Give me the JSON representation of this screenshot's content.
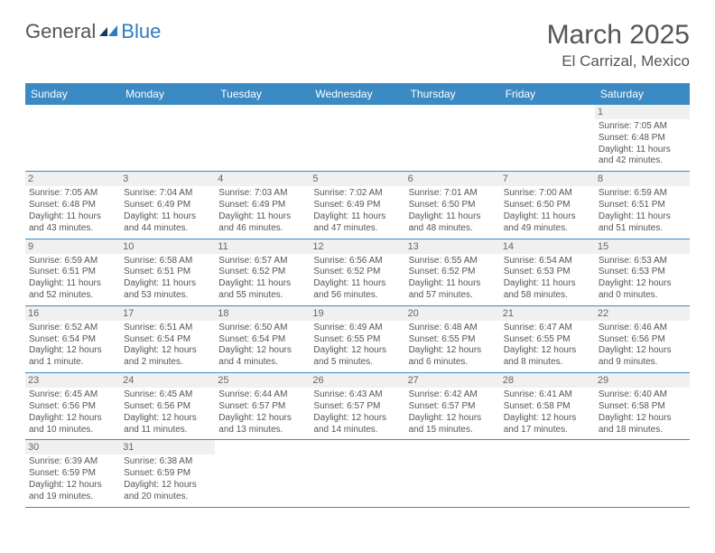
{
  "logo": {
    "text1": "General",
    "text2": "Blue"
  },
  "header": {
    "title": "March 2025",
    "location": "El Carrizal, Mexico"
  },
  "colors": {
    "header_bg": "#3b8ac4",
    "header_text": "#ffffff",
    "border": "#3b8ac4",
    "logo_blue": "#2e7cc0",
    "text": "#555555",
    "daynum_bg": "#f0f0f0"
  },
  "weekdays": [
    "Sunday",
    "Monday",
    "Tuesday",
    "Wednesday",
    "Thursday",
    "Friday",
    "Saturday"
  ],
  "weeks": [
    [
      null,
      null,
      null,
      null,
      null,
      null,
      {
        "n": "1",
        "sr": "Sunrise: 7:05 AM",
        "ss": "Sunset: 6:48 PM",
        "dl": "Daylight: 11 hours and 42 minutes."
      }
    ],
    [
      {
        "n": "2",
        "sr": "Sunrise: 7:05 AM",
        "ss": "Sunset: 6:48 PM",
        "dl": "Daylight: 11 hours and 43 minutes."
      },
      {
        "n": "3",
        "sr": "Sunrise: 7:04 AM",
        "ss": "Sunset: 6:49 PM",
        "dl": "Daylight: 11 hours and 44 minutes."
      },
      {
        "n": "4",
        "sr": "Sunrise: 7:03 AM",
        "ss": "Sunset: 6:49 PM",
        "dl": "Daylight: 11 hours and 46 minutes."
      },
      {
        "n": "5",
        "sr": "Sunrise: 7:02 AM",
        "ss": "Sunset: 6:49 PM",
        "dl": "Daylight: 11 hours and 47 minutes."
      },
      {
        "n": "6",
        "sr": "Sunrise: 7:01 AM",
        "ss": "Sunset: 6:50 PM",
        "dl": "Daylight: 11 hours and 48 minutes."
      },
      {
        "n": "7",
        "sr": "Sunrise: 7:00 AM",
        "ss": "Sunset: 6:50 PM",
        "dl": "Daylight: 11 hours and 49 minutes."
      },
      {
        "n": "8",
        "sr": "Sunrise: 6:59 AM",
        "ss": "Sunset: 6:51 PM",
        "dl": "Daylight: 11 hours and 51 minutes."
      }
    ],
    [
      {
        "n": "9",
        "sr": "Sunrise: 6:59 AM",
        "ss": "Sunset: 6:51 PM",
        "dl": "Daylight: 11 hours and 52 minutes."
      },
      {
        "n": "10",
        "sr": "Sunrise: 6:58 AM",
        "ss": "Sunset: 6:51 PM",
        "dl": "Daylight: 11 hours and 53 minutes."
      },
      {
        "n": "11",
        "sr": "Sunrise: 6:57 AM",
        "ss": "Sunset: 6:52 PM",
        "dl": "Daylight: 11 hours and 55 minutes."
      },
      {
        "n": "12",
        "sr": "Sunrise: 6:56 AM",
        "ss": "Sunset: 6:52 PM",
        "dl": "Daylight: 11 hours and 56 minutes."
      },
      {
        "n": "13",
        "sr": "Sunrise: 6:55 AM",
        "ss": "Sunset: 6:52 PM",
        "dl": "Daylight: 11 hours and 57 minutes."
      },
      {
        "n": "14",
        "sr": "Sunrise: 6:54 AM",
        "ss": "Sunset: 6:53 PM",
        "dl": "Daylight: 11 hours and 58 minutes."
      },
      {
        "n": "15",
        "sr": "Sunrise: 6:53 AM",
        "ss": "Sunset: 6:53 PM",
        "dl": "Daylight: 12 hours and 0 minutes."
      }
    ],
    [
      {
        "n": "16",
        "sr": "Sunrise: 6:52 AM",
        "ss": "Sunset: 6:54 PM",
        "dl": "Daylight: 12 hours and 1 minute."
      },
      {
        "n": "17",
        "sr": "Sunrise: 6:51 AM",
        "ss": "Sunset: 6:54 PM",
        "dl": "Daylight: 12 hours and 2 minutes."
      },
      {
        "n": "18",
        "sr": "Sunrise: 6:50 AM",
        "ss": "Sunset: 6:54 PM",
        "dl": "Daylight: 12 hours and 4 minutes."
      },
      {
        "n": "19",
        "sr": "Sunrise: 6:49 AM",
        "ss": "Sunset: 6:55 PM",
        "dl": "Daylight: 12 hours and 5 minutes."
      },
      {
        "n": "20",
        "sr": "Sunrise: 6:48 AM",
        "ss": "Sunset: 6:55 PM",
        "dl": "Daylight: 12 hours and 6 minutes."
      },
      {
        "n": "21",
        "sr": "Sunrise: 6:47 AM",
        "ss": "Sunset: 6:55 PM",
        "dl": "Daylight: 12 hours and 8 minutes."
      },
      {
        "n": "22",
        "sr": "Sunrise: 6:46 AM",
        "ss": "Sunset: 6:56 PM",
        "dl": "Daylight: 12 hours and 9 minutes."
      }
    ],
    [
      {
        "n": "23",
        "sr": "Sunrise: 6:45 AM",
        "ss": "Sunset: 6:56 PM",
        "dl": "Daylight: 12 hours and 10 minutes."
      },
      {
        "n": "24",
        "sr": "Sunrise: 6:45 AM",
        "ss": "Sunset: 6:56 PM",
        "dl": "Daylight: 12 hours and 11 minutes."
      },
      {
        "n": "25",
        "sr": "Sunrise: 6:44 AM",
        "ss": "Sunset: 6:57 PM",
        "dl": "Daylight: 12 hours and 13 minutes."
      },
      {
        "n": "26",
        "sr": "Sunrise: 6:43 AM",
        "ss": "Sunset: 6:57 PM",
        "dl": "Daylight: 12 hours and 14 minutes."
      },
      {
        "n": "27",
        "sr": "Sunrise: 6:42 AM",
        "ss": "Sunset: 6:57 PM",
        "dl": "Daylight: 12 hours and 15 minutes."
      },
      {
        "n": "28",
        "sr": "Sunrise: 6:41 AM",
        "ss": "Sunset: 6:58 PM",
        "dl": "Daylight: 12 hours and 17 minutes."
      },
      {
        "n": "29",
        "sr": "Sunrise: 6:40 AM",
        "ss": "Sunset: 6:58 PM",
        "dl": "Daylight: 12 hours and 18 minutes."
      }
    ],
    [
      {
        "n": "30",
        "sr": "Sunrise: 6:39 AM",
        "ss": "Sunset: 6:59 PM",
        "dl": "Daylight: 12 hours and 19 minutes."
      },
      {
        "n": "31",
        "sr": "Sunrise: 6:38 AM",
        "ss": "Sunset: 6:59 PM",
        "dl": "Daylight: 12 hours and 20 minutes."
      },
      null,
      null,
      null,
      null,
      null
    ]
  ]
}
